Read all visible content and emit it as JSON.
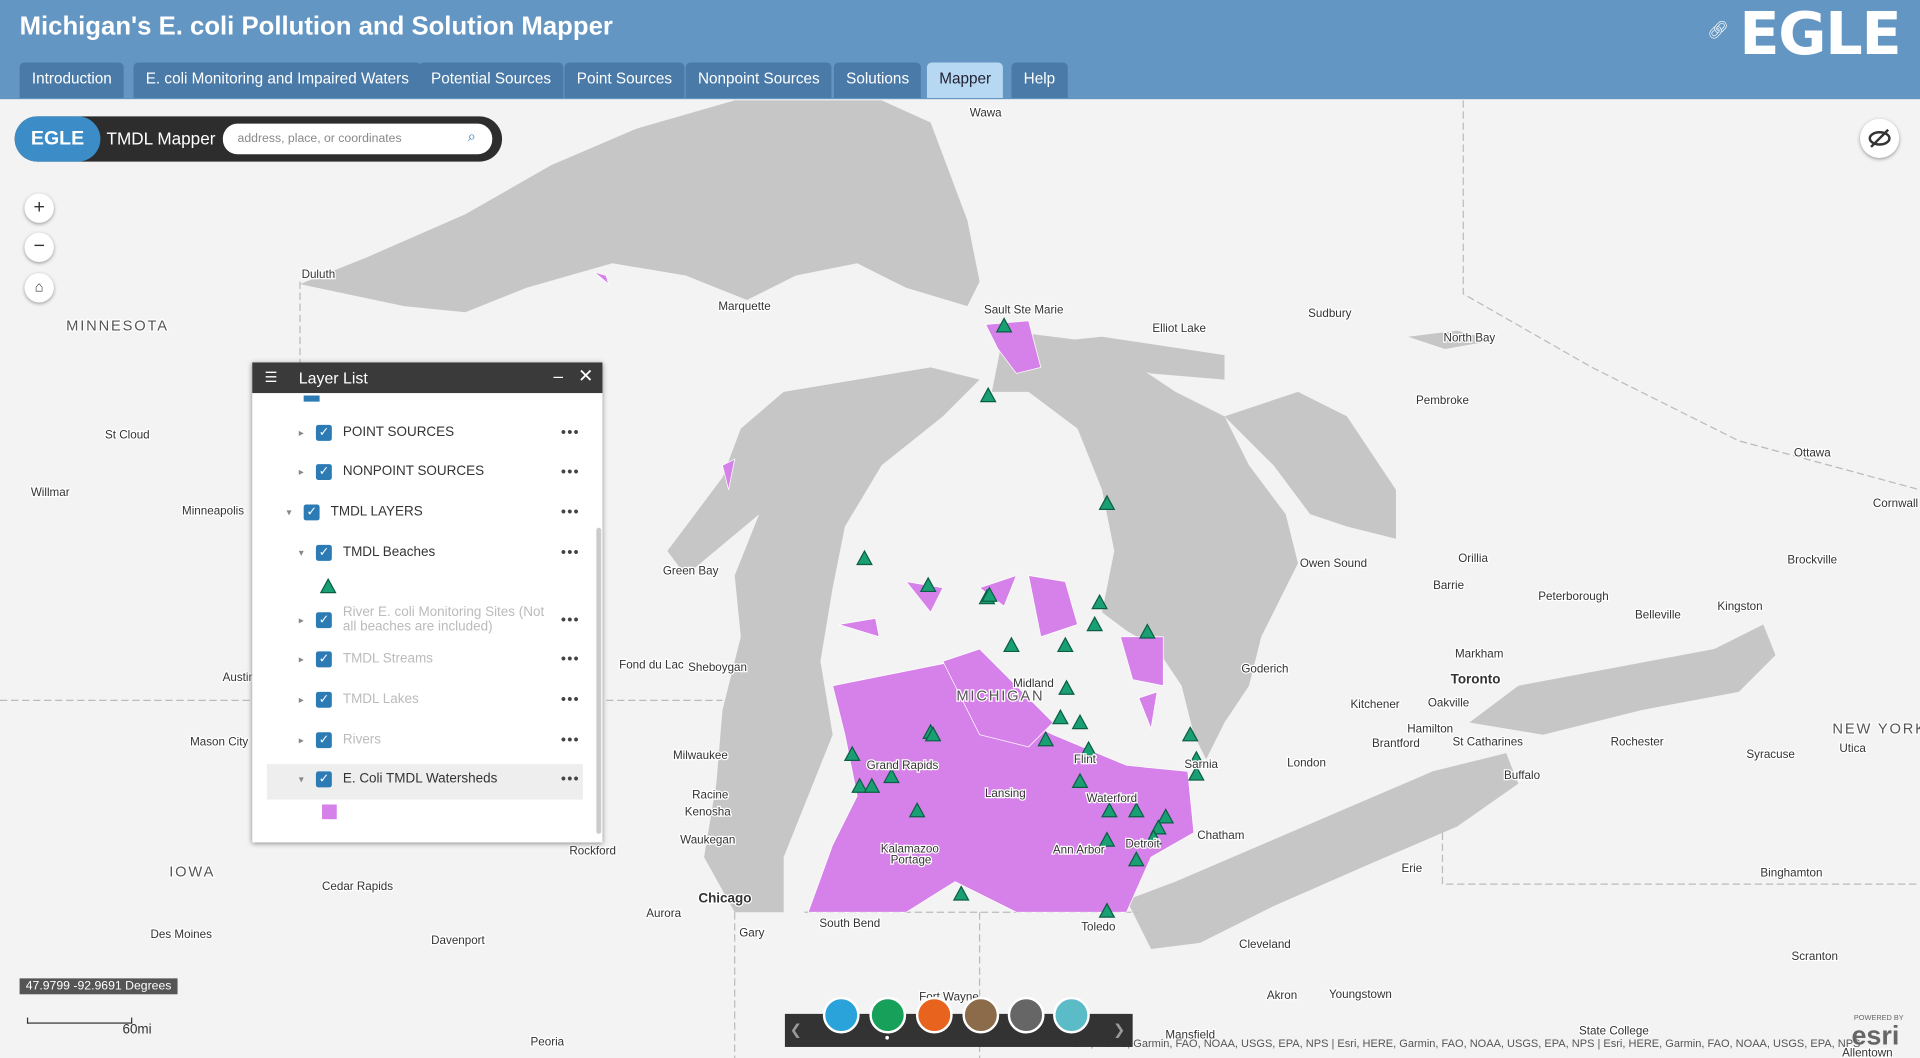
{
  "header": {
    "title": "Michigan's E. coli Pollution and Solution Mapper",
    "logo": "EGLE",
    "tabs": [
      "Introduction",
      "E. coli Monitoring and Impaired Waters",
      "Potential Sources",
      "Point Sources",
      "Nonpoint Sources",
      "Solutions",
      "Mapper",
      "Help"
    ]
  },
  "search": {
    "badge": "EGLE",
    "title": "TMDL Mapper",
    "placeholder": "address, place, or coordinates"
  },
  "layer_list": {
    "title": "Layer List",
    "items": [
      "POINT SOURCES",
      "NONPOINT SOURCES",
      "TMDL LAYERS",
      "TMDL Beaches",
      "River E. coli Monitoring Sites (Not all beaches are included)",
      "TMDL Streams",
      "TMDL Lakes",
      "Rivers",
      "E. Coli TMDL Watersheds"
    ]
  },
  "map": {
    "labels": [
      "Wawa",
      "Duluth",
      "Marquette",
      "Sault Ste Marie",
      "Elliot Lake",
      "Sudbury",
      "North Bay",
      "MINNESOTA",
      "Pembroke",
      "St Cloud",
      "Ottawa",
      "Willmar",
      "Minneapolis",
      "Cornwall",
      "Green Bay",
      "Owen Sound",
      "Orillia",
      "Brockville",
      "Barrie",
      "Peterborough",
      "Belleville",
      "Kingston",
      "Fond du Lac",
      "Sheboygan",
      "Goderich",
      "Markham",
      "Midland",
      "Austin",
      "MICHIGAN",
      "Toronto",
      "Kitchener",
      "Oakville",
      "Mason City",
      "NEW YORK",
      "Hamilton",
      "Brantford",
      "St Catharines",
      "Rochester",
      "Syracuse",
      "Utica",
      "Milwaukee",
      "Grand Rapids",
      "Flint",
      "London",
      "Buffalo",
      "Sarnia",
      "Racine",
      "Lansing",
      "Waterford",
      "Kenosha",
      "Chatham",
      "Waukegan",
      "Rockford",
      "Kalamazoo",
      "Ann Arbor",
      "Detroit",
      "Portage",
      "IOWA",
      "Erie",
      "Binghamton",
      "Cedar Rapids",
      "Chicago",
      "Aurora",
      "South Bend",
      "Toledo",
      "Gary",
      "Des Moines",
      "Davenport",
      "Cleveland",
      "Scranton",
      "Akron",
      "Youngstown",
      "Fort Wayne",
      "State College",
      "Mansfield",
      "Peoria",
      "Allentown"
    ],
    "coordinates": "47.9799 -92.9691 Degrees",
    "scale": "60mi",
    "attribution": "Esri, HERE, Garmin, FAO, NOAA, USGS, EPA, NPS | Esri, HERE, Garmin, FAO, NOAA, USGS, EPA, NPS | Esri, HERE, Garmin, FAO, NOAA, USGS, EPA, NPS",
    "powered_by": "POWERED BY",
    "esri_logo": "esri"
  }
}
